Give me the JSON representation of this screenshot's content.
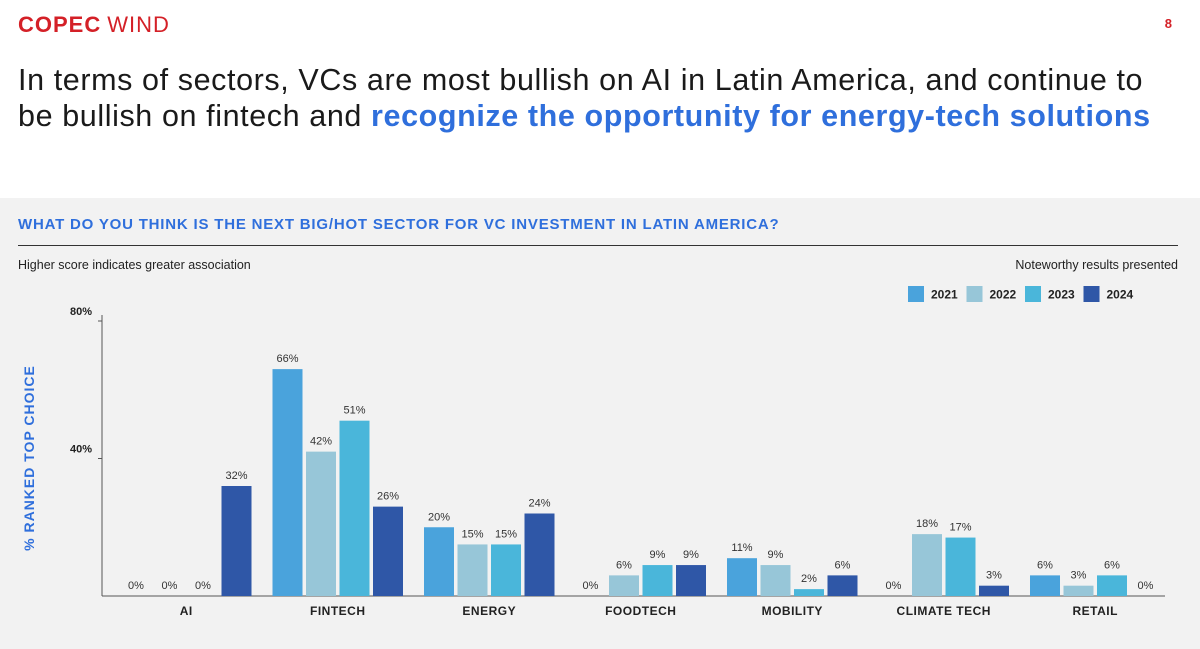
{
  "brand": {
    "logo_a": "COPEC",
    "logo_b": "WIND"
  },
  "page_number": "8",
  "headline": {
    "plain": "In terms of sectors, VCs are most bullish on AI in Latin America, and continue to be bullish on fintech and ",
    "accent": "recognize the opportunity for energy-tech solutions"
  },
  "question": "WHAT DO YOU THINK IS THE NEXT BIG/HOT SECTOR FOR VC INVESTMENT IN LATIN AMERICA?",
  "note_left": "Higher score indicates greater association",
  "note_right": "Noteworthy results presented",
  "colors": {
    "accent": "#2f6fdc",
    "brand": "#d42027"
  },
  "chart_data": {
    "type": "bar",
    "ylabel": "% RANKED TOP CHOICE",
    "ylim": [
      0,
      80
    ],
    "yticks": [
      40,
      80
    ],
    "ytick_labels": [
      "40%",
      "80%"
    ],
    "categories": [
      "AI",
      "FINTECH",
      "ENERGY",
      "FOODTECH",
      "MOBILITY",
      "CLIMATE TECH",
      "RETAIL"
    ],
    "legend_position": "top-right",
    "series": [
      {
        "name": "2021",
        "color": "#4aa3dc",
        "values": [
          0,
          66,
          20,
          0,
          11,
          0,
          6
        ]
      },
      {
        "name": "2022",
        "color": "#97c6d8",
        "values": [
          0,
          42,
          15,
          6,
          9,
          18,
          3
        ]
      },
      {
        "name": "2023",
        "color": "#4ab6da",
        "values": [
          0,
          51,
          15,
          9,
          2,
          17,
          6
        ]
      },
      {
        "name": "2024",
        "color": "#2f57a7",
        "values": [
          32,
          26,
          24,
          9,
          6,
          3,
          0
        ]
      }
    ]
  }
}
